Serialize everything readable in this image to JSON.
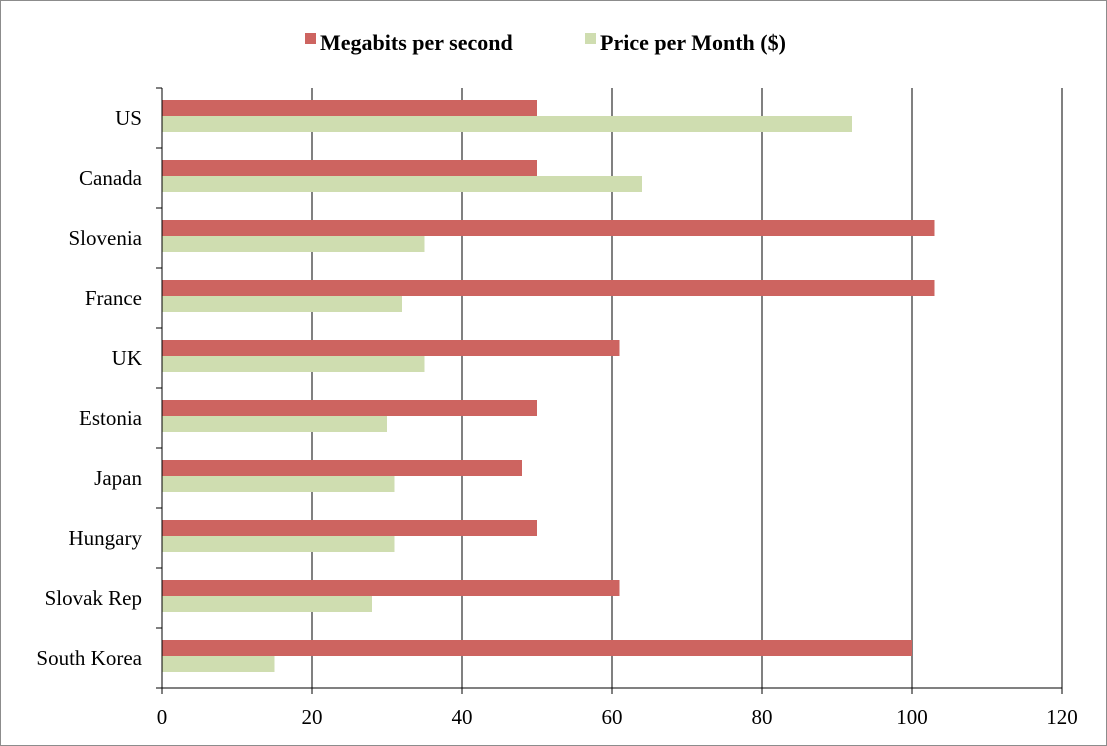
{
  "chart_data": {
    "type": "bar",
    "orientation": "horizontal",
    "categories": [
      "US",
      "Canada",
      "Slovenia",
      "France",
      "UK",
      "Estonia",
      "Japan",
      "Hungary",
      "Slovak Rep",
      "South Korea"
    ],
    "series": [
      {
        "name": "Megabits per second",
        "color": "#cd6460",
        "values": [
          50,
          50,
          103,
          103,
          61,
          50,
          48,
          50,
          61,
          100
        ]
      },
      {
        "name": "Price per Month ($)",
        "color": "#cfddb0",
        "values": [
          92,
          64,
          35,
          32,
          35,
          30,
          31,
          31,
          28,
          15
        ]
      }
    ],
    "xlim": [
      0,
      120
    ],
    "xticks": [
      0,
      20,
      40,
      60,
      80,
      100,
      120
    ],
    "grid": "vertical",
    "legend": "top"
  }
}
